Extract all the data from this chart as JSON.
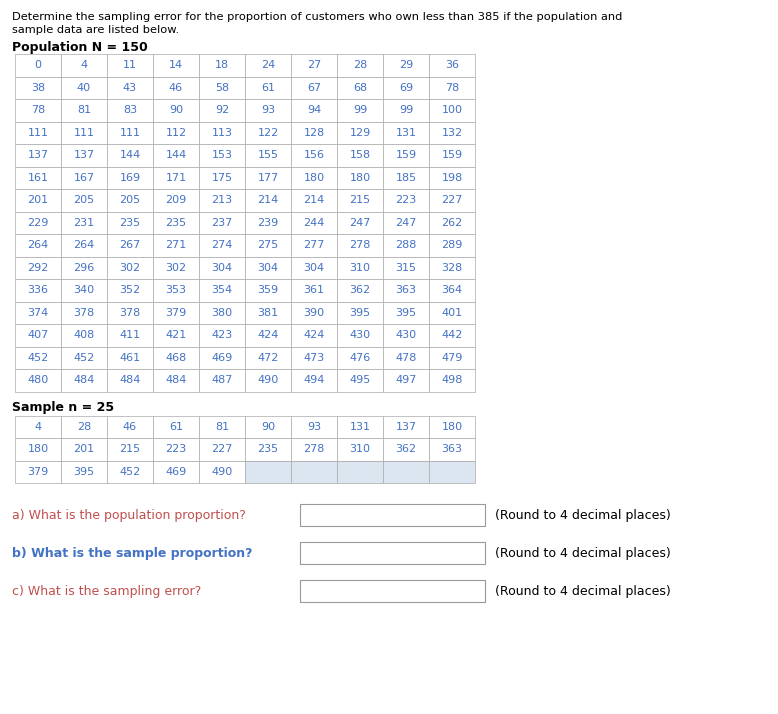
{
  "title_line1": "Determine the sampling error for the proportion of customers who own less than 385 if the population and",
  "title_line2": "sample data are listed below.",
  "population_label": "Population N = 150",
  "sample_label": "Sample n = 25",
  "population_grid": [
    [
      0,
      4,
      11,
      14,
      18,
      24,
      27,
      28,
      29,
      36
    ],
    [
      38,
      40,
      43,
      46,
      58,
      61,
      67,
      68,
      69,
      78
    ],
    [
      78,
      81,
      83,
      90,
      92,
      93,
      94,
      99,
      99,
      100
    ],
    [
      111,
      111,
      111,
      112,
      113,
      122,
      128,
      129,
      131,
      132
    ],
    [
      137,
      137,
      144,
      144,
      153,
      155,
      156,
      158,
      159,
      159
    ],
    [
      161,
      167,
      169,
      171,
      175,
      177,
      180,
      180,
      185,
      198
    ],
    [
      201,
      205,
      205,
      209,
      213,
      214,
      214,
      215,
      223,
      227
    ],
    [
      229,
      231,
      235,
      235,
      237,
      239,
      244,
      247,
      247,
      262
    ],
    [
      264,
      264,
      267,
      271,
      274,
      275,
      277,
      278,
      288,
      289
    ],
    [
      292,
      296,
      302,
      302,
      304,
      304,
      304,
      310,
      315,
      328
    ],
    [
      336,
      340,
      352,
      353,
      354,
      359,
      361,
      362,
      363,
      364
    ],
    [
      374,
      378,
      378,
      379,
      380,
      381,
      390,
      395,
      395,
      401
    ],
    [
      407,
      408,
      411,
      421,
      423,
      424,
      424,
      430,
      430,
      442
    ],
    [
      452,
      452,
      461,
      468,
      469,
      472,
      473,
      476,
      478,
      479
    ],
    [
      480,
      484,
      484,
      484,
      487,
      490,
      494,
      495,
      497,
      498
    ]
  ],
  "sample_grid": [
    [
      4,
      28,
      46,
      61,
      81,
      90,
      93,
      131,
      137,
      180
    ],
    [
      180,
      201,
      215,
      223,
      227,
      235,
      278,
      310,
      362,
      363
    ],
    [
      379,
      395,
      452,
      469,
      490,
      null,
      null,
      null,
      null,
      null
    ]
  ],
  "questions": [
    "a) What is the population proportion?",
    "b) What is the sample proportion?",
    "c) What is the sampling error?"
  ],
  "round_note": "(Round to 4 decimal places)",
  "bg_color": "#ffffff",
  "title_color": "#000000",
  "label_color": "#000000",
  "table_text_color": "#4472c4",
  "cell_bg": "#ffffff",
  "cell_bg_empty": "#dce6f1",
  "cell_border": "#aaaaaa",
  "question_text_color": "#c0504d",
  "question_b_color": "#4472c4",
  "round_note_color": "#000000",
  "input_box_border": "#999999",
  "input_box_bg": "#ffffff"
}
